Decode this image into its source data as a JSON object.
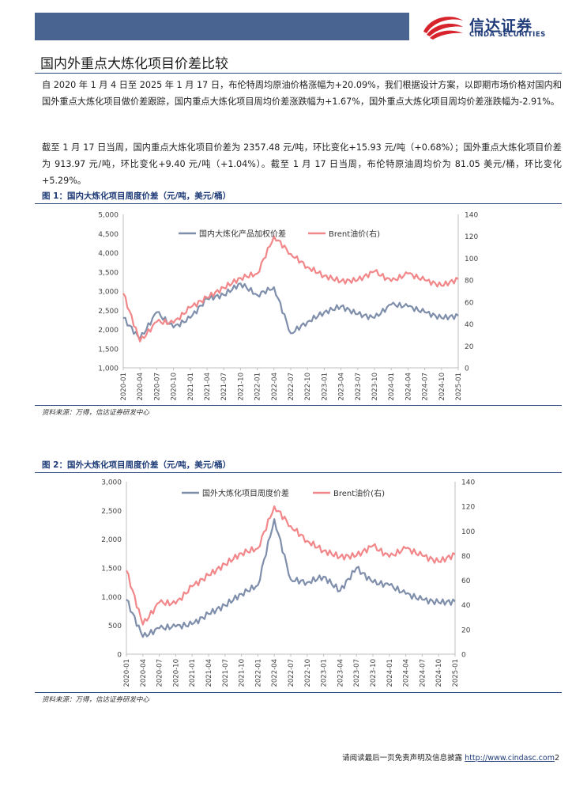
{
  "brand": {
    "cn": "信达证券",
    "en": "CINDA SECURITIES"
  },
  "section_title": "国内外重点大炼化项目价差比较",
  "paragraphs": [
    "自 2020 年 1 月 4 日至 2025 年 1 月 17 日，布伦特周均原油价格涨幅为+20.09%，我们根据设计方案，以即期市场价格对国内和国外重点大炼化项目做价差跟踪，国内重点大炼化项目周均价差涨跌幅为+1.67%，国外重点大炼化项目周均价差涨跌幅为-2.91%。",
    "截至 1 月 17 日当周，国内重点大炼化项目价差为 2357.48 元/吨，环比变化+15.93 元/吨（+0.68%）；国外重点大炼化项目价差为 913.97 元/吨，环比变化+9.40 元/吨（+1.04%）。截至 1 月 17 日当周，布伦特原油周均价为 81.05 美元/桶，环比变化+5.29%。"
  ],
  "figures": [
    {
      "label": "图 1：国内大炼化项目周度价差（元/吨，美元/桶）",
      "source": "资料来源：万得，信达证券研发中心"
    },
    {
      "label": "图 2：国外大炼化项目周度价差（元/吨，美元/桶）",
      "source": "资料来源：万得，信达证券研发中心"
    }
  ],
  "footer": {
    "text": "请阅读最后一页免责声明及信息披露 ",
    "link": "http://www.cindasc.com",
    "page": "2"
  },
  "chart_data": [
    {
      "type": "line",
      "title": "国内大炼化项目周度价差（元/吨，美元/桶）",
      "categories": [
        "2020-01",
        "2020-04",
        "2020-07",
        "2020-10",
        "2021-01",
        "2021-04",
        "2021-07",
        "2021-10",
        "2022-01",
        "2022-04",
        "2022-07",
        "2022-10",
        "2023-01",
        "2023-04",
        "2023-07",
        "2023-10",
        "2024-01",
        "2024-04",
        "2024-07",
        "2024-10",
        "2025-01"
      ],
      "y_left": {
        "min": 1000,
        "max": 5000,
        "ticks": [
          "1,000",
          "1,500",
          "2,000",
          "2,500",
          "3,000",
          "3,500",
          "4,000",
          "4,500",
          "5,000"
        ]
      },
      "y_right": {
        "min": 0,
        "max": 140,
        "ticks": [
          "0",
          "20",
          "40",
          "60",
          "80",
          "100",
          "120",
          "140"
        ]
      },
      "series": [
        {
          "name": "国内大炼化产品加权价差",
          "axis": "left",
          "color": "#7f8fab",
          "values": [
            2300,
            1750,
            2450,
            2050,
            2300,
            2800,
            2900,
            3200,
            2900,
            3100,
            1900,
            2200,
            2450,
            2600,
            2400,
            2300,
            2650,
            2600,
            2450,
            2300,
            2357
          ]
        },
        {
          "name": "Brent油价(右)",
          "axis": "right",
          "color": "#f2878a",
          "values": [
            68,
            24,
            42,
            41,
            55,
            64,
            73,
            82,
            86,
            120,
            104,
            92,
            84,
            79,
            80,
            88,
            79,
            86,
            80,
            75,
            81
          ]
        }
      ]
    },
    {
      "type": "line",
      "title": "国外大炼化项目周度价差（元/吨，美元/桶）",
      "categories": [
        "2020-01",
        "2020-04",
        "2020-07",
        "2020-10",
        "2021-01",
        "2021-04",
        "2021-07",
        "2021-10",
        "2022-01",
        "2022-04",
        "2022-07",
        "2022-10",
        "2023-01",
        "2023-04",
        "2023-07",
        "2023-10",
        "2024-01",
        "2024-04",
        "2024-07",
        "2024-10",
        "2025-01"
      ],
      "y_left": {
        "min": 0,
        "max": 3000,
        "ticks": [
          "0",
          "500",
          "1,000",
          "1,500",
          "2,000",
          "2,500",
          "3,000"
        ]
      },
      "y_right": {
        "min": 0,
        "max": 140,
        "ticks": [
          "0",
          "20",
          "40",
          "60",
          "80",
          "100",
          "120",
          "140"
        ]
      },
      "series": [
        {
          "name": "国外大炼化项目周度价差",
          "axis": "left",
          "color": "#7f8fab",
          "values": [
            950,
            300,
            450,
            480,
            520,
            700,
            850,
            1050,
            1200,
            2350,
            1300,
            1250,
            1350,
            1100,
            1500,
            1250,
            1200,
            1050,
            950,
            900,
            914
          ]
        },
        {
          "name": "Brent油价(右)",
          "axis": "right",
          "color": "#f2878a",
          "values": [
            68,
            24,
            42,
            41,
            55,
            64,
            73,
            82,
            86,
            120,
            104,
            92,
            84,
            79,
            80,
            88,
            79,
            86,
            80,
            75,
            81
          ]
        }
      ]
    }
  ]
}
